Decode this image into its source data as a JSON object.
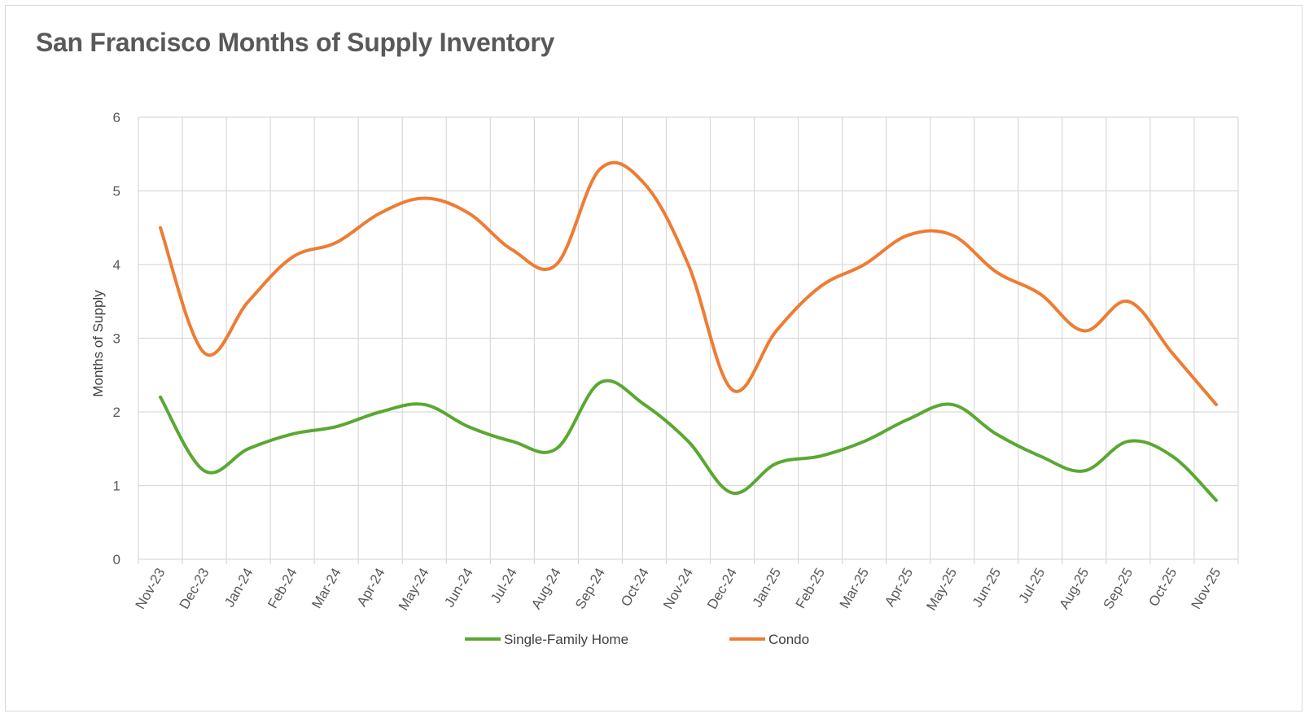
{
  "chart_data": {
    "type": "line",
    "title": "San Francisco Months of Supply Inventory",
    "xlabel": "",
    "ylabel": "Months of Supply",
    "ylim": [
      0,
      6
    ],
    "yticks": [
      0,
      1,
      2,
      3,
      4,
      5,
      6
    ],
    "grid": true,
    "legend_position": "bottom",
    "smooth": true,
    "categories": [
      "Nov-23",
      "Dec-23",
      "Jan-24",
      "Feb-24",
      "Mar-24",
      "Apr-24",
      "May-24",
      "Jun-24",
      "Jul-24",
      "Aug-24",
      "Sep-24",
      "Oct-24",
      "Nov-24",
      "Dec-24",
      "Jan-25",
      "Feb-25",
      "Mar-25",
      "Apr-25",
      "May-25",
      "Jun-25",
      "Jul-25",
      "Aug-25",
      "Sep-25",
      "Oct-25",
      "Nov-25"
    ],
    "series": [
      {
        "name": "Single-Family Home",
        "color": "#5aa832",
        "values": [
          2.2,
          1.2,
          1.5,
          1.7,
          1.8,
          2.0,
          2.1,
          1.8,
          1.6,
          1.5,
          2.4,
          2.1,
          1.6,
          0.9,
          1.3,
          1.4,
          1.6,
          1.9,
          2.1,
          1.7,
          1.4,
          1.2,
          1.6,
          1.4,
          0.8
        ]
      },
      {
        "name": "Condo",
        "color": "#ee7c33",
        "values": [
          4.5,
          2.8,
          3.5,
          4.1,
          4.3,
          4.7,
          4.9,
          4.7,
          4.2,
          4.0,
          5.3,
          5.1,
          4.0,
          2.3,
          3.1,
          3.7,
          4.0,
          4.4,
          4.4,
          3.9,
          3.6,
          3.1,
          3.5,
          2.8,
          2.1
        ]
      }
    ]
  }
}
